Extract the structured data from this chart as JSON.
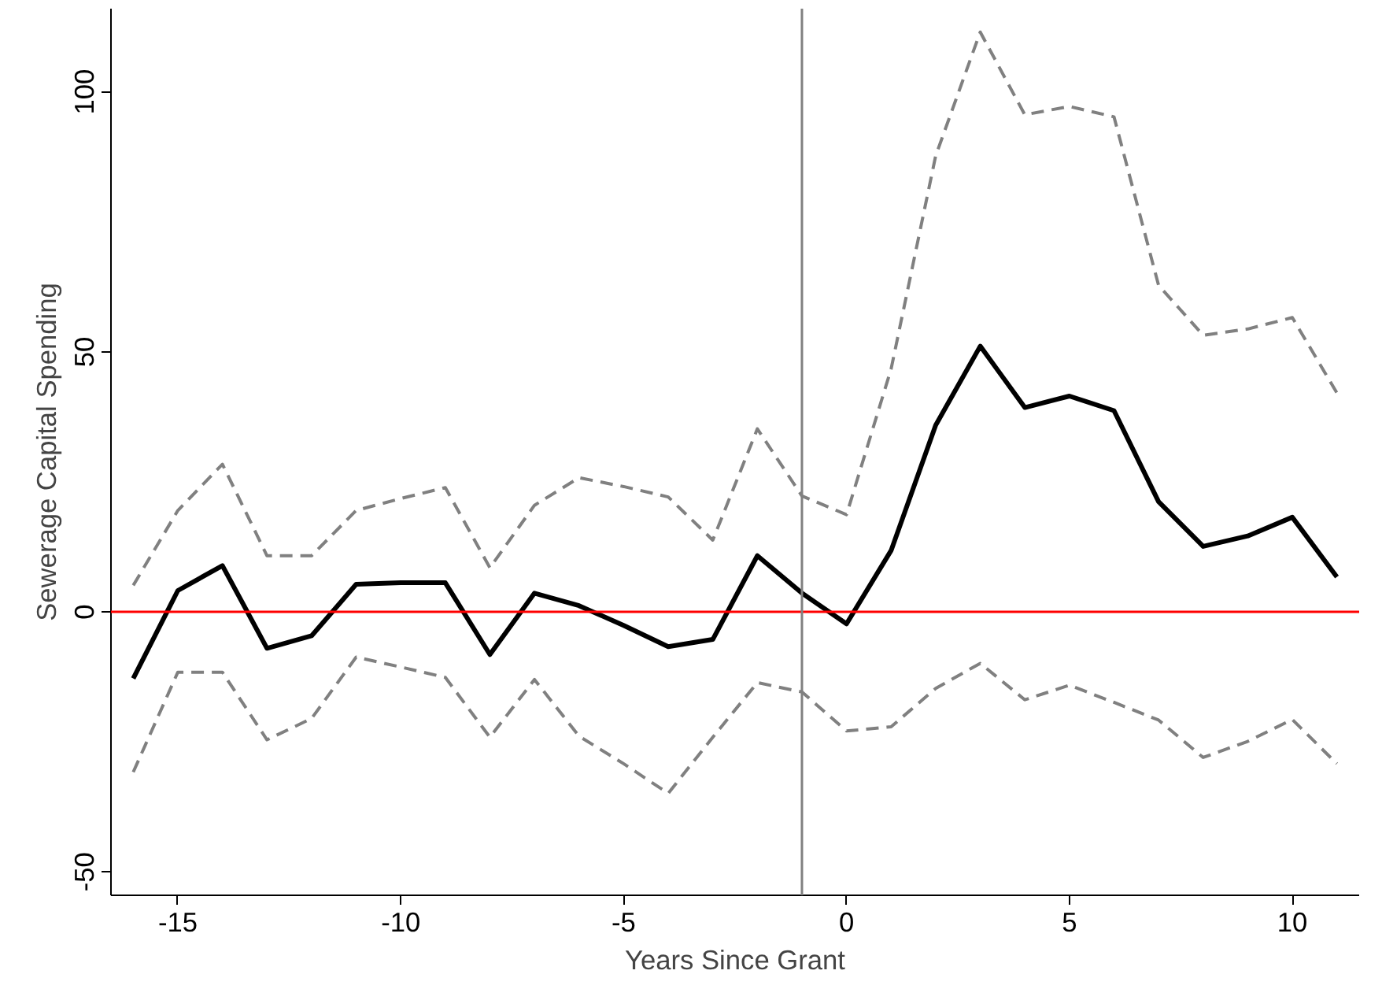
{
  "chart_data": {
    "type": "line",
    "xlabel": "Years Since Grant",
    "ylabel": "Sewerage Capital Spending",
    "x": [
      -16,
      -15,
      -14,
      -13,
      -12,
      -11,
      -10,
      -9,
      -8,
      -7,
      -6,
      -5,
      -4,
      -3,
      -2,
      -1,
      0,
      1,
      2,
      3,
      4,
      5,
      6,
      7,
      8,
      9,
      10,
      11
    ],
    "series": [
      {
        "color": "#000000",
        "line_style": "solid",
        "values": [
          -12.8,
          4.1,
          8.9,
          -7.0,
          -4.6,
          5.3,
          5.6,
          5.6,
          -8.2,
          3.6,
          1.2,
          -2.6,
          -6.7,
          -5.3,
          10.8,
          3.6,
          -2.3,
          11.8,
          35.9,
          51.1,
          39.3,
          41.5,
          38.7,
          21.2,
          12.6,
          14.6,
          18.2,
          6.7
        ]
      },
      {
        "color": "#808080",
        "line_style": "dashed",
        "values": [
          5.1,
          19.5,
          28.4,
          10.8,
          10.8,
          19.5,
          21.8,
          23.9,
          8.5,
          20.5,
          25.8,
          24.1,
          22.1,
          13.8,
          35.2,
          22.3,
          18.7,
          46.7,
          87.7,
          111.5,
          95.6,
          97.2,
          95.2,
          62.8,
          53.2,
          54.4,
          56.6,
          42.1
        ]
      },
      {
        "color": "#808080",
        "line_style": "dashed",
        "values": [
          -30.8,
          -11.6,
          -11.6,
          -24.6,
          -20.5,
          -8.7,
          -10.6,
          -12.6,
          -24.1,
          -13.0,
          -23.9,
          -29.2,
          -34.9,
          -24.1,
          -13.6,
          -15.4,
          -22.9,
          -22.1,
          -14.7,
          -9.9,
          -16.9,
          -14.1,
          -17.4,
          -20.8,
          -28.0,
          -24.9,
          -20.7,
          -29.2
        ]
      }
    ],
    "xlim": [
      -16.5,
      11.5
    ],
    "ylim": [
      -54.5,
      116
    ],
    "xticks": [
      -15,
      -10,
      -5,
      0,
      5,
      10
    ],
    "yticks": [
      -50,
      0,
      50,
      100
    ],
    "ref_lines": [
      {
        "axis": "y",
        "value": 0,
        "color": "#ff0000",
        "line_style": "solid"
      },
      {
        "axis": "x",
        "value": -1,
        "color": "#808080",
        "line_style": "solid"
      }
    ],
    "grid": false
  }
}
